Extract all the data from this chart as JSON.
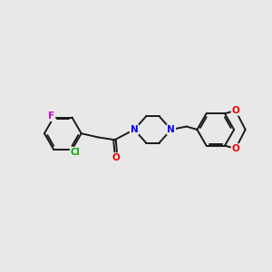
{
  "background_color": "#e8e8e8",
  "bond_color": "#1a1a1a",
  "atom_colors": {
    "F": "#cc00cc",
    "Cl": "#00aa00",
    "N": "#0000ee",
    "O": "#ee0000",
    "C": "#1a1a1a"
  },
  "fig_width": 3.0,
  "fig_height": 3.0,
  "dpi": 100,
  "lw": 1.4,
  "fontsize": 7.5
}
